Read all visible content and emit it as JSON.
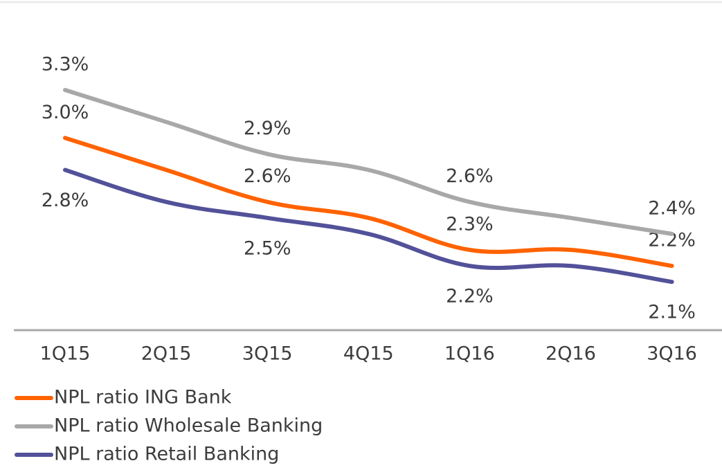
{
  "chart_data": {
    "type": "line",
    "categories": [
      "1Q15",
      "2Q15",
      "3Q15",
      "4Q15",
      "1Q16",
      "2Q16",
      "3Q16"
    ],
    "series": [
      {
        "name": "NPL ratio ING Bank",
        "color": "#ff6200",
        "values": [
          3.0,
          2.8,
          2.6,
          2.5,
          2.3,
          2.3,
          2.2
        ],
        "value_labels": [
          "3.0%",
          null,
          "2.6%",
          null,
          "2.3%",
          null,
          "2.2%"
        ]
      },
      {
        "name": "NPL ratio Wholesale Banking",
        "color": "#a8a8a8",
        "values": [
          3.3,
          3.1,
          2.9,
          2.8,
          2.6,
          2.5,
          2.4
        ],
        "value_labels": [
          "3.3%",
          null,
          "2.9%",
          null,
          "2.6%",
          null,
          "2.4%"
        ]
      },
      {
        "name": "NPL ratio Retail Banking",
        "color": "#525199",
        "values": [
          2.8,
          2.6,
          2.5,
          2.4,
          2.2,
          2.2,
          2.1
        ],
        "value_labels": [
          "2.8%",
          null,
          "2.5%",
          null,
          "2.2%",
          null,
          "2.1%"
        ]
      }
    ]
  }
}
